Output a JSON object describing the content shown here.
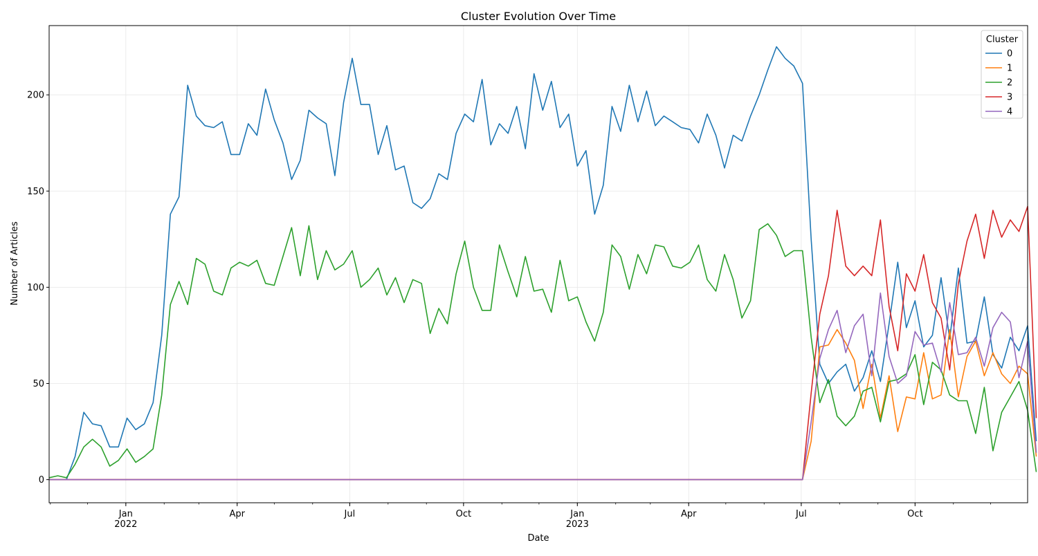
{
  "chart_data": {
    "type": "line",
    "title": "Cluster Evolution Over Time",
    "xlabel": "Date",
    "ylabel": "Number of Articles",
    "x_start": "2021-10-31",
    "x_end": "2023-12-31",
    "x_step": "1 week",
    "ylim": [
      -12,
      236
    ],
    "yticks": [
      0,
      50,
      100,
      150,
      200
    ],
    "grid": true,
    "legend": {
      "title": "Cluster",
      "position": "top-right"
    },
    "xticks_major": [
      {
        "date": "2022-01-01",
        "label": "Jan",
        "sublabel": "2022"
      },
      {
        "date": "2022-04-01",
        "label": "Apr",
        "sublabel": ""
      },
      {
        "date": "2022-07-01",
        "label": "Jul",
        "sublabel": ""
      },
      {
        "date": "2022-10-01",
        "label": "Oct",
        "sublabel": ""
      },
      {
        "date": "2023-01-01",
        "label": "Jan",
        "sublabel": "2023"
      },
      {
        "date": "2023-04-01",
        "label": "Apr",
        "sublabel": ""
      },
      {
        "date": "2023-07-01",
        "label": "Jul",
        "sublabel": ""
      },
      {
        "date": "2023-10-01",
        "label": "Oct",
        "sublabel": ""
      }
    ],
    "series": [
      {
        "name": "0",
        "color": "#1f77b4",
        "values": [
          0,
          0,
          0,
          12,
          35,
          29,
          28,
          17,
          17,
          32,
          26,
          29,
          40,
          75,
          138,
          147,
          205,
          189,
          184,
          183,
          186,
          169,
          169,
          185,
          179,
          203,
          187,
          175,
          156,
          166,
          192,
          188,
          185,
          158,
          196,
          219,
          195,
          195,
          169,
          184,
          161,
          163,
          144,
          141,
          146,
          159,
          156,
          180,
          190,
          186,
          208,
          174,
          185,
          180,
          194,
          172,
          211,
          192,
          207,
          183,
          190,
          163,
          171,
          138,
          153,
          194,
          181,
          205,
          186,
          202,
          184,
          189,
          186,
          183,
          182,
          175,
          190,
          179,
          162,
          179,
          176,
          189,
          200,
          213,
          225,
          219,
          215,
          206,
          125,
          60,
          50,
          56,
          60,
          46,
          53,
          67,
          51,
          81,
          113,
          79,
          93,
          69,
          75,
          105,
          73,
          110,
          71,
          72,
          95,
          65,
          58,
          74,
          67,
          80,
          20
        ]
      },
      {
        "name": "1",
        "color": "#ff7f0e",
        "values": [
          0,
          0,
          0,
          0,
          0,
          0,
          0,
          0,
          0,
          0,
          0,
          0,
          0,
          0,
          0,
          0,
          0,
          0,
          0,
          0,
          0,
          0,
          0,
          0,
          0,
          0,
          0,
          0,
          0,
          0,
          0,
          0,
          0,
          0,
          0,
          0,
          0,
          0,
          0,
          0,
          0,
          0,
          0,
          0,
          0,
          0,
          0,
          0,
          0,
          0,
          0,
          0,
          0,
          0,
          0,
          0,
          0,
          0,
          0,
          0,
          0,
          0,
          0,
          0,
          0,
          0,
          0,
          0,
          0,
          0,
          0,
          0,
          0,
          0,
          0,
          0,
          0,
          0,
          0,
          0,
          0,
          0,
          0,
          0,
          0,
          0,
          0,
          0,
          20,
          69,
          70,
          78,
          71,
          62,
          37,
          60,
          32,
          54,
          25,
          43,
          42,
          66,
          42,
          44,
          78,
          43,
          64,
          72,
          54,
          66,
          55,
          50,
          59,
          55,
          12
        ]
      },
      {
        "name": "2",
        "color": "#2ca02c",
        "values": [
          1,
          2,
          1,
          8,
          17,
          21,
          17,
          7,
          10,
          16,
          9,
          12,
          16,
          44,
          91,
          103,
          91,
          115,
          112,
          98,
          96,
          110,
          113,
          111,
          114,
          102,
          101,
          116,
          131,
          106,
          132,
          104,
          119,
          109,
          112,
          119,
          100,
          104,
          110,
          96,
          105,
          92,
          104,
          102,
          76,
          89,
          81,
          107,
          124,
          100,
          88,
          88,
          122,
          108,
          95,
          116,
          98,
          99,
          87,
          114,
          93,
          95,
          82,
          72,
          87,
          122,
          116,
          99,
          117,
          107,
          122,
          121,
          111,
          110,
          113,
          122,
          104,
          98,
          117,
          104,
          84,
          93,
          130,
          133,
          127,
          116,
          119,
          119,
          74,
          40,
          52,
          33,
          28,
          33,
          46,
          48,
          30,
          51,
          52,
          55,
          65,
          39,
          61,
          57,
          44,
          41,
          41,
          24,
          48,
          15,
          35,
          43,
          51,
          36,
          4
        ]
      },
      {
        "name": "3",
        "color": "#d62728",
        "values": [
          0,
          0,
          0,
          0,
          0,
          0,
          0,
          0,
          0,
          0,
          0,
          0,
          0,
          0,
          0,
          0,
          0,
          0,
          0,
          0,
          0,
          0,
          0,
          0,
          0,
          0,
          0,
          0,
          0,
          0,
          0,
          0,
          0,
          0,
          0,
          0,
          0,
          0,
          0,
          0,
          0,
          0,
          0,
          0,
          0,
          0,
          0,
          0,
          0,
          0,
          0,
          0,
          0,
          0,
          0,
          0,
          0,
          0,
          0,
          0,
          0,
          0,
          0,
          0,
          0,
          0,
          0,
          0,
          0,
          0,
          0,
          0,
          0,
          0,
          0,
          0,
          0,
          0,
          0,
          0,
          0,
          0,
          0,
          0,
          0,
          0,
          0,
          0,
          45,
          86,
          106,
          140,
          111,
          106,
          111,
          106,
          135,
          90,
          67,
          107,
          98,
          117,
          92,
          84,
          57,
          102,
          124,
          138,
          115,
          140,
          126,
          135,
          129,
          142,
          32
        ]
      },
      {
        "name": "4",
        "color": "#9467bd",
        "values": [
          0,
          0,
          0,
          0,
          0,
          0,
          0,
          0,
          0,
          0,
          0,
          0,
          0,
          0,
          0,
          0,
          0,
          0,
          0,
          0,
          0,
          0,
          0,
          0,
          0,
          0,
          0,
          0,
          0,
          0,
          0,
          0,
          0,
          0,
          0,
          0,
          0,
          0,
          0,
          0,
          0,
          0,
          0,
          0,
          0,
          0,
          0,
          0,
          0,
          0,
          0,
          0,
          0,
          0,
          0,
          0,
          0,
          0,
          0,
          0,
          0,
          0,
          0,
          0,
          0,
          0,
          0,
          0,
          0,
          0,
          0,
          0,
          0,
          0,
          0,
          0,
          0,
          0,
          0,
          0,
          0,
          0,
          0,
          0,
          0,
          0,
          0,
          0,
          30,
          63,
          78,
          88,
          66,
          80,
          86,
          54,
          97,
          64,
          50,
          54,
          77,
          70,
          71,
          56,
          92,
          65,
          66,
          74,
          59,
          79,
          87,
          82,
          53,
          72,
          14
        ]
      }
    ]
  }
}
